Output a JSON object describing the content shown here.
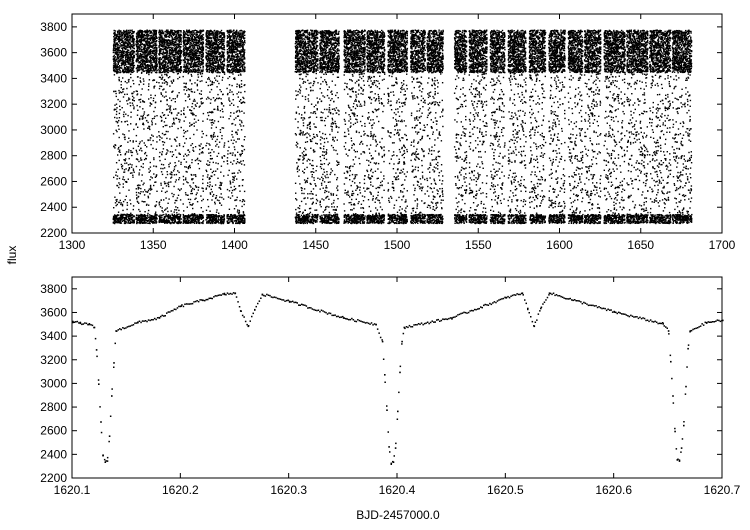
{
  "figure": {
    "ylabel": "flux",
    "xlabel": "BJD-2457000.0"
  },
  "chart_data": [
    {
      "type": "scatter",
      "title": "",
      "xlabel": "",
      "ylabel": "flux",
      "xlim": [
        1300,
        1700
      ],
      "ylim": [
        2200,
        3900
      ],
      "xticks": [
        1300,
        1350,
        1400,
        1450,
        1500,
        1550,
        1600,
        1650,
        1700
      ],
      "yticks": [
        2200,
        2400,
        2600,
        2800,
        3000,
        3200,
        3400,
        3600,
        3800
      ],
      "grid": false,
      "marker_color": "#000000",
      "eclipse_period_days": 0.2645,
      "flux_out_of_eclipse_range": [
        3450,
        3780
      ],
      "primary_eclipse_min_flux": 2300,
      "observing_segments": [
        [
          1325,
          1338
        ],
        [
          1339,
          1352
        ],
        [
          1353,
          1367
        ],
        [
          1368,
          1380.5
        ],
        [
          1382,
          1393.5
        ],
        [
          1395,
          1406
        ],
        [
          1437,
          1451
        ],
        [
          1452,
          1464
        ],
        [
          1467,
          1480
        ],
        [
          1481,
          1492
        ],
        [
          1494,
          1506
        ],
        [
          1508,
          1517
        ],
        [
          1518,
          1528
        ],
        [
          1535,
          1542.5
        ],
        [
          1544,
          1555
        ],
        [
          1557,
          1566
        ],
        [
          1568,
          1579
        ],
        [
          1581,
          1591
        ],
        [
          1593,
          1603
        ],
        [
          1605,
          1614
        ],
        [
          1615,
          1625
        ],
        [
          1627,
          1640
        ],
        [
          1641,
          1654
        ],
        [
          1655,
          1668
        ],
        [
          1669,
          1681
        ]
      ]
    },
    {
      "type": "scatter",
      "title": "",
      "xlabel": "BJD-2457000.0",
      "ylabel": "",
      "xlim": [
        1620.1,
        1620.7
      ],
      "ylim": [
        2200,
        3900
      ],
      "xticks": [
        1620.1,
        1620.2,
        1620.3,
        1620.4,
        1620.5,
        1620.6,
        1620.7
      ],
      "yticks": [
        2200,
        2400,
        2600,
        2800,
        3000,
        3200,
        3400,
        3600,
        3800
      ],
      "grid": false,
      "marker_color": "#000000",
      "primary_eclipse_times": [
        1620.129,
        1620.393,
        1620.658
      ],
      "primary_eclipse_min_flux": 2330,
      "secondary_eclipse_times": [
        1620.262,
        1620.526
      ],
      "secondary_eclipse_min_flux": 3490,
      "quadrature_max_flux": 3780,
      "out_of_eclipse_base_flux": 3500,
      "points": [
        {
          "x": 1620.1,
          "y": 3530
        },
        {
          "x": 1620.107,
          "y": 3515
        },
        {
          "x": 1620.115,
          "y": 3505
        },
        {
          "x": 1620.12,
          "y": 3480
        },
        {
          "x": 1620.122,
          "y": 3290
        },
        {
          "x": 1620.124,
          "y": 3000
        },
        {
          "x": 1620.126,
          "y": 2680
        },
        {
          "x": 1620.128,
          "y": 2400
        },
        {
          "x": 1620.13,
          "y": 2340
        },
        {
          "x": 1620.132,
          "y": 2350
        },
        {
          "x": 1620.134,
          "y": 2560
        },
        {
          "x": 1620.136,
          "y": 2900
        },
        {
          "x": 1620.138,
          "y": 3180
        },
        {
          "x": 1620.14,
          "y": 3450
        },
        {
          "x": 1620.16,
          "y": 3520
        },
        {
          "x": 1620.18,
          "y": 3560
        },
        {
          "x": 1620.2,
          "y": 3660
        },
        {
          "x": 1620.22,
          "y": 3710
        },
        {
          "x": 1620.24,
          "y": 3760
        },
        {
          "x": 1620.25,
          "y": 3770
        },
        {
          "x": 1620.255,
          "y": 3620
        },
        {
          "x": 1620.262,
          "y": 3490
        },
        {
          "x": 1620.268,
          "y": 3630
        },
        {
          "x": 1620.275,
          "y": 3760
        },
        {
          "x": 1620.3,
          "y": 3700
        },
        {
          "x": 1620.35,
          "y": 3560
        },
        {
          "x": 1620.38,
          "y": 3505
        },
        {
          "x": 1620.386,
          "y": 3360
        },
        {
          "x": 1620.388,
          "y": 3080
        },
        {
          "x": 1620.39,
          "y": 2780
        },
        {
          "x": 1620.392,
          "y": 2470
        },
        {
          "x": 1620.394,
          "y": 2330
        },
        {
          "x": 1620.396,
          "y": 2340
        },
        {
          "x": 1620.398,
          "y": 2460
        },
        {
          "x": 1620.4,
          "y": 2770
        },
        {
          "x": 1620.402,
          "y": 3100
        },
        {
          "x": 1620.404,
          "y": 3360
        },
        {
          "x": 1620.406,
          "y": 3480
        },
        {
          "x": 1620.45,
          "y": 3560
        },
        {
          "x": 1620.5,
          "y": 3730
        },
        {
          "x": 1620.515,
          "y": 3770
        },
        {
          "x": 1620.52,
          "y": 3640
        },
        {
          "x": 1620.526,
          "y": 3490
        },
        {
          "x": 1620.532,
          "y": 3640
        },
        {
          "x": 1620.54,
          "y": 3770
        },
        {
          "x": 1620.6,
          "y": 3610
        },
        {
          "x": 1620.645,
          "y": 3510
        },
        {
          "x": 1620.65,
          "y": 3450
        },
        {
          "x": 1620.652,
          "y": 3190
        },
        {
          "x": 1620.654,
          "y": 2900
        },
        {
          "x": 1620.656,
          "y": 2600
        },
        {
          "x": 1620.658,
          "y": 2360
        },
        {
          "x": 1620.66,
          "y": 2350
        },
        {
          "x": 1620.662,
          "y": 2460
        },
        {
          "x": 1620.664,
          "y": 2650
        },
        {
          "x": 1620.666,
          "y": 2980
        },
        {
          "x": 1620.668,
          "y": 3300
        },
        {
          "x": 1620.67,
          "y": 3450
        },
        {
          "x": 1620.685,
          "y": 3520
        },
        {
          "x": 1620.7,
          "y": 3540
        }
      ]
    }
  ]
}
